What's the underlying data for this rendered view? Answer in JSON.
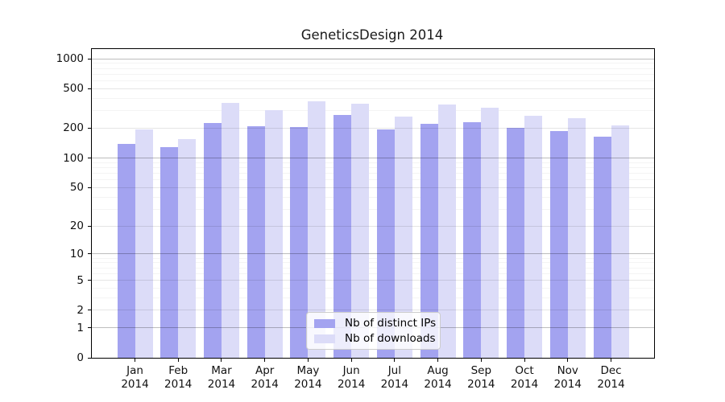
{
  "figure": {
    "title": "GeneticsDesign 2014"
  },
  "chart_data": {
    "type": "bar",
    "title": "GeneticsDesign 2014",
    "categories": [
      "Jan 2014",
      "Feb 2014",
      "Mar 2014",
      "Apr 2014",
      "May 2014",
      "Jun 2014",
      "Jul 2014",
      "Aug 2014",
      "Sep 2014",
      "Oct 2014",
      "Nov 2014",
      "Dec 2014"
    ],
    "series": [
      {
        "name": "Nb of distinct IPs",
        "key": "distinct_ips",
        "color": "#a3a3f0",
        "values": [
          138,
          128,
          224,
          208,
          205,
          274,
          193,
          221,
          231,
          201,
          187,
          164
        ]
      },
      {
        "name": "Nb of downloads",
        "key": "downloads",
        "color": "#dcdcf8",
        "values": [
          195,
          155,
          363,
          305,
          374,
          352,
          261,
          345,
          320,
          266,
          253,
          215
        ]
      }
    ],
    "x_axis": {
      "tick_labels_line1": [
        "Jan",
        "Feb",
        "Mar",
        "Apr",
        "May",
        "Jun",
        "Jul",
        "Aug",
        "Sep",
        "Oct",
        "Nov",
        "Dec"
      ],
      "tick_labels_line2": "2014"
    },
    "y_axis": {
      "scale": "log1p",
      "major_ticks": [
        0,
        1,
        2,
        5,
        10,
        20,
        50,
        100,
        200,
        500,
        1000
      ],
      "emphasized_ticks": [
        1,
        10,
        100,
        1000
      ],
      "minor_ticks": [
        3,
        4,
        6,
        7,
        8,
        9,
        30,
        40,
        60,
        70,
        80,
        90,
        300,
        400,
        600,
        700,
        800,
        900
      ],
      "top_value": 1251
    },
    "grid": true,
    "legend_position": "lower center",
    "ylabel": "",
    "xlabel": ""
  },
  "legend": {
    "items": [
      {
        "label": "Nb of distinct IPs"
      },
      {
        "label": "Nb of downloads"
      }
    ]
  },
  "style": {
    "bar_distinct_ips": "#a3a3f0",
    "bar_downloads": "#dcdcf8",
    "axis_color": "#000000",
    "grid_major": "rgba(0,0,0,0.10)",
    "grid_emphasized": "rgba(0,0,0,0.26)",
    "grid_minor": "rgba(0,0,0,0.045)",
    "legend_border": "#cccccc",
    "legend_bg": "rgba(255,255,255,0.8)"
  }
}
